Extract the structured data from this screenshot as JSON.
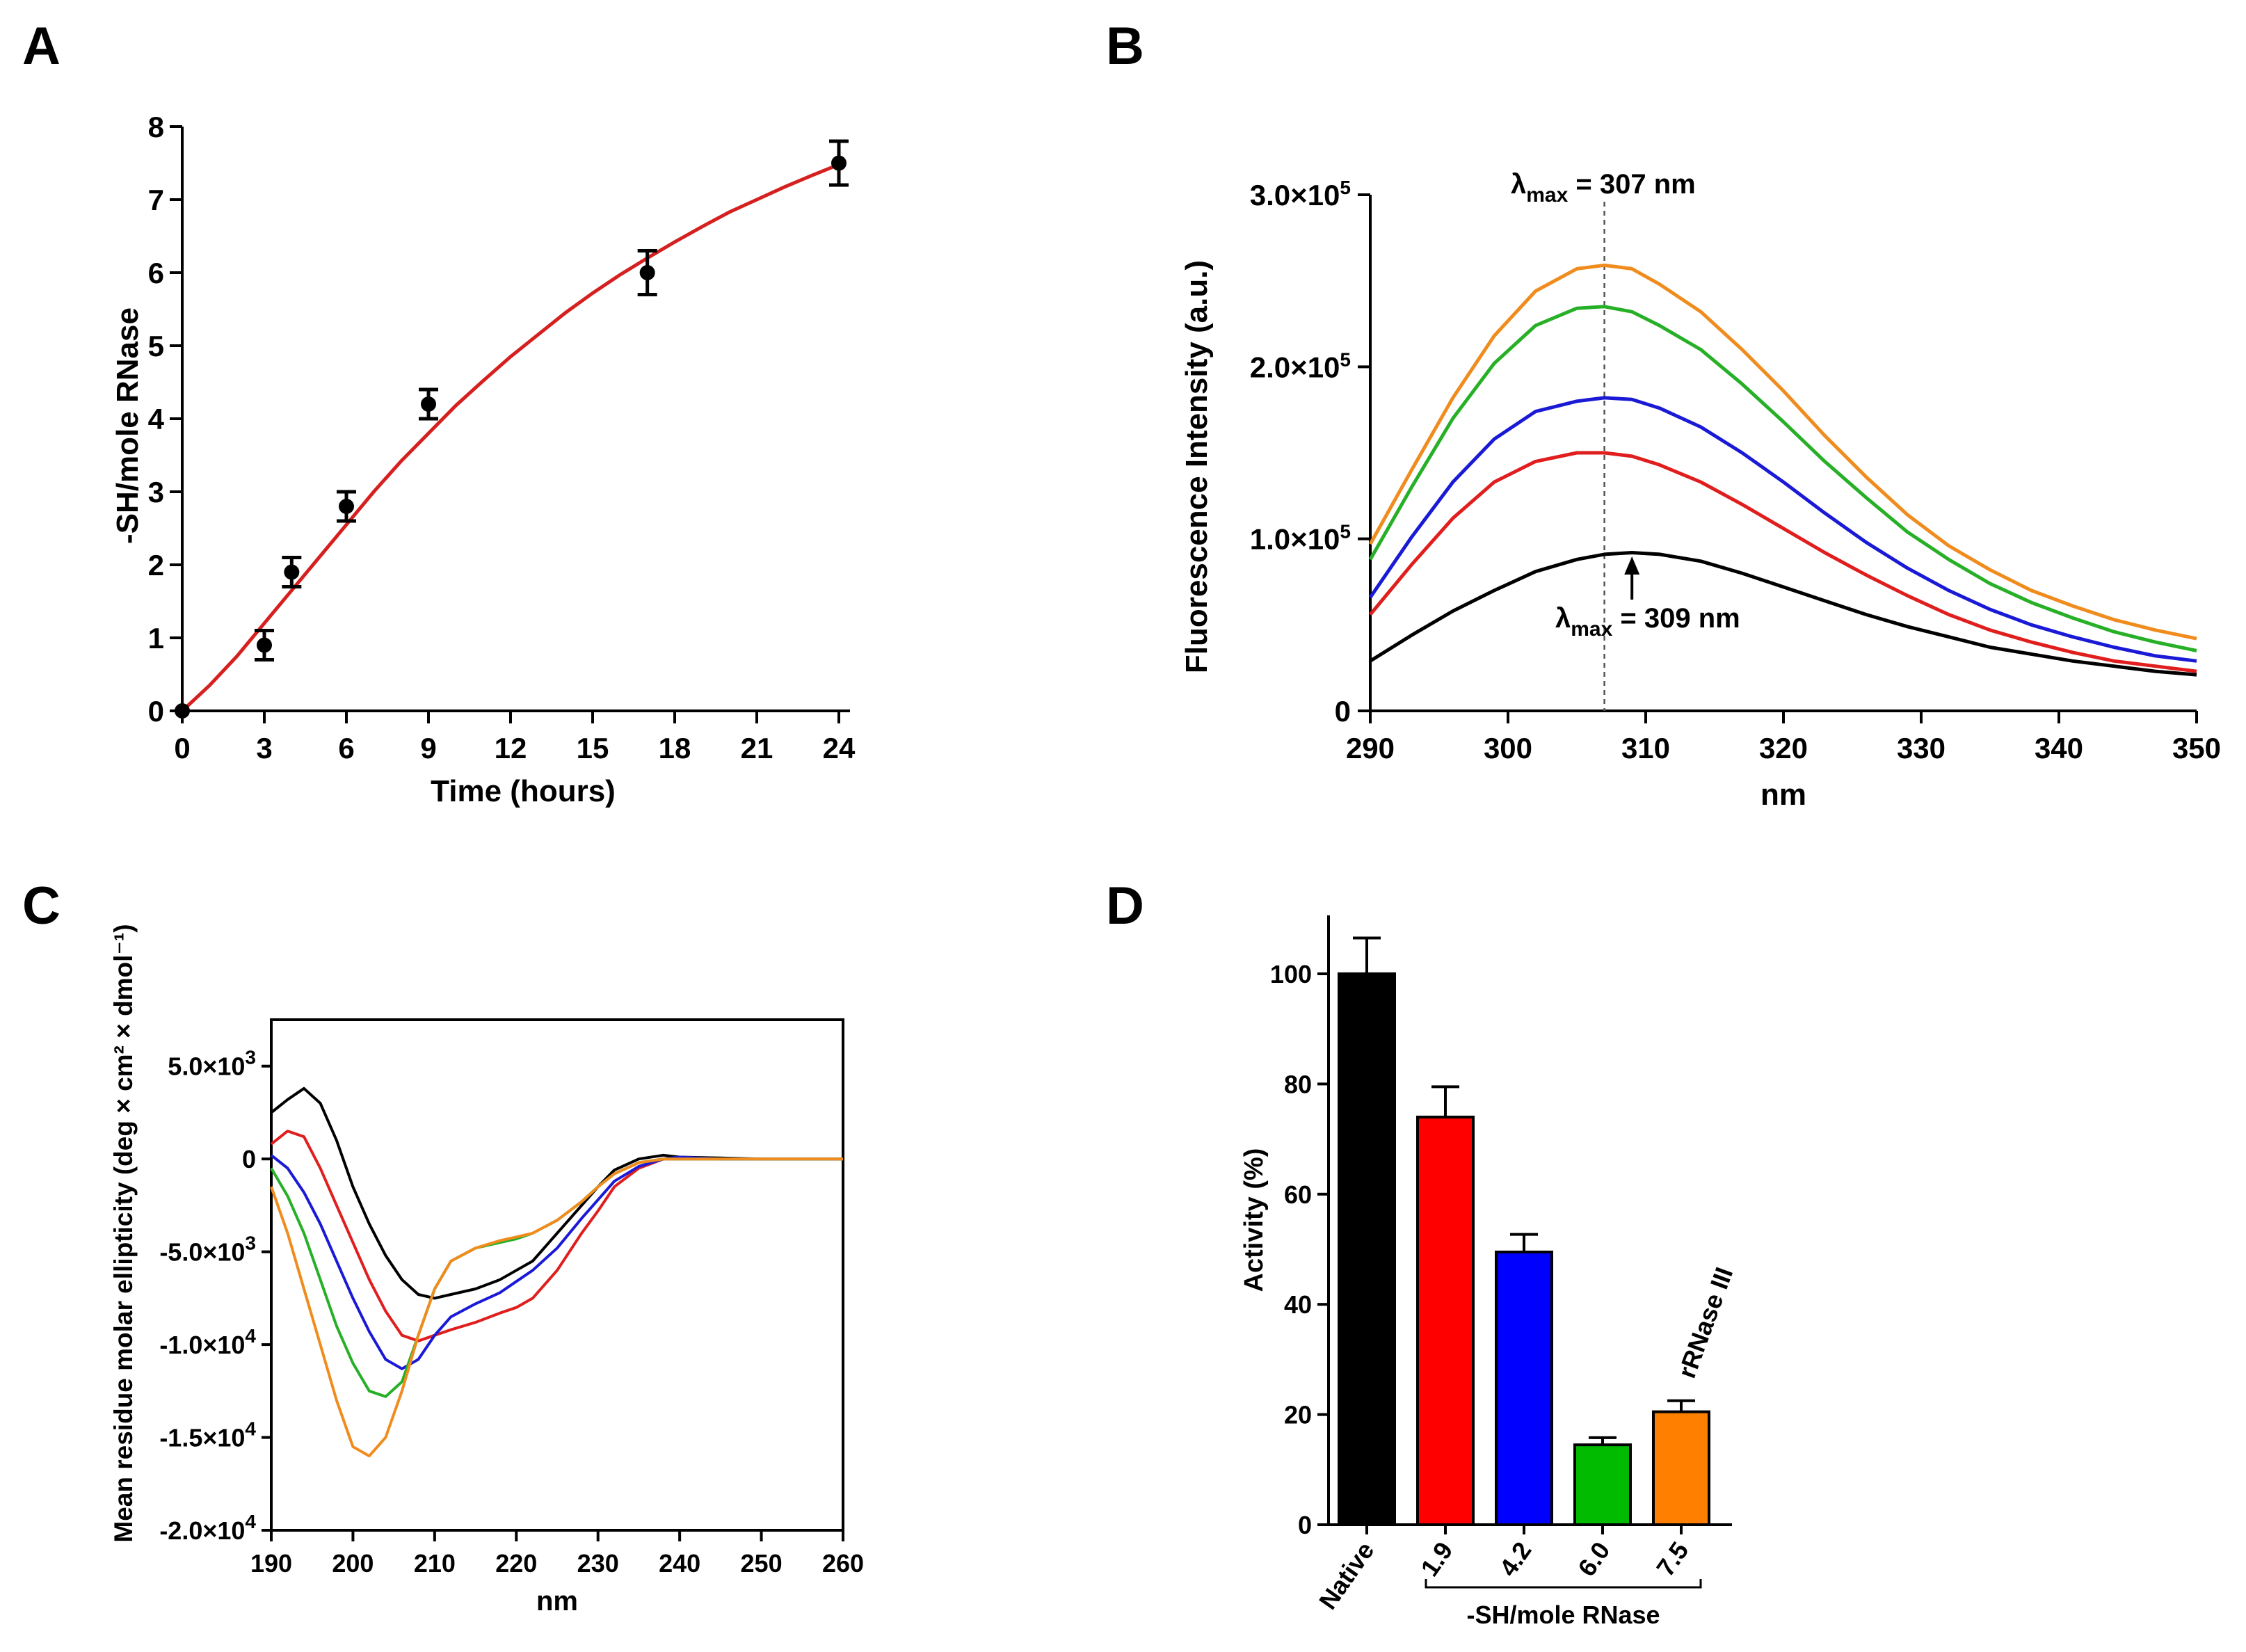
{
  "chart_data": [
    {
      "panel": "A",
      "type": "scatter",
      "xlabel": "Time (hours)",
      "ylabel": "-SH/mole RNase",
      "xlim": [
        0,
        25
      ],
      "ylim": [
        0,
        8
      ],
      "xticks": [
        0,
        3,
        6,
        9,
        12,
        15,
        18,
        21,
        24
      ],
      "yticks": [
        0,
        1,
        2,
        3,
        4,
        5,
        6,
        7,
        8
      ],
      "series": [
        {
          "points": [
            {
              "x": 0,
              "y": 0,
              "err": 0
            },
            {
              "x": 3,
              "y": 0.9,
              "err": 0.2
            },
            {
              "x": 4,
              "y": 1.9,
              "err": 0.2
            },
            {
              "x": 6,
              "y": 2.8,
              "err": 0.2
            },
            {
              "x": 9,
              "y": 4.2,
              "err": 0.2
            },
            {
              "x": 17,
              "y": 6.0,
              "err": 0.3
            },
            {
              "x": 24,
              "y": 7.5,
              "err": 0.3
            }
          ],
          "color": "#000000"
        }
      ],
      "fit": {
        "color": "#d62020",
        "x": [
          0,
          1,
          2,
          3,
          4,
          5,
          6,
          7,
          8,
          9,
          10,
          11,
          12,
          13,
          14,
          15,
          16,
          17,
          18,
          19,
          20,
          21,
          22,
          23,
          24
        ],
        "y": [
          0,
          0.35,
          0.75,
          1.2,
          1.65,
          2.1,
          2.55,
          3.0,
          3.42,
          3.8,
          4.18,
          4.52,
          4.85,
          5.15,
          5.45,
          5.72,
          5.97,
          6.2,
          6.42,
          6.63,
          6.83,
          7.0,
          7.17,
          7.33,
          7.48
        ]
      }
    },
    {
      "panel": "B",
      "type": "line",
      "xlabel": "nm",
      "ylabel": "Fluorescence Intensity (a.u.)",
      "xlim": [
        290,
        350
      ],
      "ylim": [
        0,
        300000
      ],
      "xticks": [
        290,
        300,
        310,
        320,
        330,
        340,
        350
      ],
      "yticks": [
        {
          "value": 0,
          "label": "0",
          "exp": ""
        },
        {
          "value": 100000,
          "label": "1.0×10",
          "exp": "5"
        },
        {
          "value": 200000,
          "label": "2.0×10",
          "exp": "5"
        },
        {
          "value": 300000,
          "label": "3.0×10",
          "exp": "5"
        }
      ],
      "annotations": [
        {
          "text": "λ",
          "sub": "max",
          "rest": " = 307 nm",
          "x": 307
        },
        {
          "text": "λ",
          "sub": "max",
          "rest": " = 309 nm",
          "x": 309
        }
      ],
      "dashed_line_x": 307,
      "arrow_x": 309,
      "x": [
        290,
        293,
        296,
        299,
        302,
        305,
        307,
        309,
        311,
        314,
        317,
        320,
        323,
        326,
        329,
        332,
        335,
        338,
        341,
        344,
        347,
        350
      ],
      "series": [
        {
          "color": "#f08c1e",
          "values": [
            97000,
            140000,
            182000,
            218000,
            244000,
            257000,
            259000,
            257000,
            248000,
            232000,
            210000,
            186000,
            160000,
            136000,
            114000,
            96000,
            82000,
            70000,
            61000,
            53000,
            47000,
            42000
          ]
        },
        {
          "color": "#27b027",
          "values": [
            88000,
            130000,
            170000,
            202000,
            224000,
            234000,
            235000,
            232000,
            224000,
            210000,
            190000,
            168000,
            145000,
            124000,
            104000,
            88000,
            74000,
            63000,
            54000,
            46000,
            40000,
            35000
          ]
        },
        {
          "color": "#1a1ad6",
          "values": [
            66000,
            101000,
            133000,
            158000,
            174000,
            180000,
            182000,
            181000,
            176000,
            165000,
            150000,
            133000,
            115000,
            98000,
            83000,
            70000,
            59000,
            50000,
            43000,
            37000,
            32000,
            29000
          ]
        },
        {
          "color": "#e01e1e",
          "values": [
            56000,
            85000,
            112000,
            133000,
            145000,
            150000,
            150000,
            148000,
            143000,
            133000,
            120000,
            106000,
            92000,
            79000,
            67000,
            56000,
            47000,
            40000,
            34000,
            29000,
            26000,
            23000
          ]
        },
        {
          "color": "#000000",
          "values": [
            29000,
            44000,
            58000,
            70000,
            81000,
            88000,
            91000,
            92000,
            91000,
            87000,
            80000,
            72000,
            64000,
            56000,
            49000,
            43000,
            37000,
            33000,
            29000,
            26000,
            23000,
            21000
          ]
        }
      ]
    },
    {
      "panel": "C",
      "type": "line",
      "xlabel": "nm",
      "ylabel": "Mean residue molar ellipticity (deg × cm² × dmol⁻¹)",
      "xlim": [
        190,
        260
      ],
      "ylim": [
        -20000,
        7500
      ],
      "xticks": [
        190,
        200,
        210,
        220,
        230,
        240,
        250,
        260
      ],
      "yticks": [
        {
          "value": 5000,
          "label": "5.0×10",
          "exp": "3"
        },
        {
          "value": 0,
          "label": "0",
          "exp": ""
        },
        {
          "value": -5000,
          "label": "-5.0×10",
          "exp": "3"
        },
        {
          "value": -10000,
          "label": "-1.0×10",
          "exp": "4"
        },
        {
          "value": -15000,
          "label": "-1.5×10",
          "exp": "4"
        },
        {
          "value": -20000,
          "label": "-2.0×10",
          "exp": "4"
        }
      ],
      "x": [
        190,
        192,
        194,
        196,
        198,
        200,
        202,
        204,
        206,
        208,
        210,
        212,
        215,
        218,
        220,
        222,
        225,
        228,
        230,
        232,
        235,
        238,
        240,
        245,
        250,
        255,
        260
      ],
      "series": [
        {
          "color": "#000000",
          "values": [
            2500,
            3200,
            3800,
            3000,
            1000,
            -1500,
            -3500,
            -5200,
            -6500,
            -7300,
            -7500,
            -7300,
            -7000,
            -6500,
            -6000,
            -5500,
            -4000,
            -2500,
            -1500,
            -600,
            0,
            200,
            100,
            50,
            0,
            0,
            0
          ]
        },
        {
          "color": "#e01e1e",
          "values": [
            800,
            1500,
            1200,
            -500,
            -2500,
            -4500,
            -6500,
            -8200,
            -9500,
            -9800,
            -9500,
            -9200,
            -8800,
            -8300,
            -8000,
            -7500,
            -6000,
            -4000,
            -2800,
            -1500,
            -500,
            0,
            0,
            0,
            0,
            0,
            0
          ]
        },
        {
          "color": "#1a1ad6",
          "values": [
            200,
            -500,
            -1800,
            -3500,
            -5500,
            -7500,
            -9300,
            -10800,
            -11300,
            -10800,
            -9500,
            -8500,
            -7800,
            -7200,
            -6600,
            -6000,
            -4800,
            -3200,
            -2200,
            -1200,
            -400,
            0,
            100,
            0,
            0,
            0,
            0
          ]
        },
        {
          "color": "#27b027",
          "values": [
            -500,
            -2000,
            -4000,
            -6500,
            -9000,
            -11000,
            -12500,
            -12800,
            -12000,
            -9500,
            -7000,
            -5500,
            -4800,
            -4500,
            -4300,
            -4000,
            -3300,
            -2300,
            -1500,
            -800,
            -200,
            0,
            0,
            0,
            0,
            0,
            0
          ]
        },
        {
          "color": "#f08c1e",
          "values": [
            -1500,
            -4000,
            -7000,
            -10000,
            -13000,
            -15500,
            -16000,
            -15000,
            -12500,
            -9500,
            -7000,
            -5500,
            -4800,
            -4400,
            -4200,
            -4000,
            -3300,
            -2300,
            -1500,
            -800,
            -200,
            0,
            0,
            0,
            0,
            0,
            0
          ]
        }
      ]
    },
    {
      "panel": "D",
      "type": "bar",
      "ylabel": "Activity (%)",
      "xlabel": "-SH/mole RNase",
      "ylim": [
        0,
        110
      ],
      "yticks": [
        0,
        20,
        40,
        60,
        80,
        100
      ],
      "categories": [
        "Native",
        "1.9",
        "4.2",
        "6.0",
        "7.5"
      ],
      "values": [
        100,
        74,
        49.5,
        14.5,
        20.5
      ],
      "errors": [
        6.5,
        5.5,
        3.2,
        1.3,
        2.0
      ],
      "colors": [
        "#000000",
        "#ff0000",
        "#0000ff",
        "#00bb00",
        "#ff8000"
      ],
      "bar_annotation": "rRNase III"
    }
  ]
}
